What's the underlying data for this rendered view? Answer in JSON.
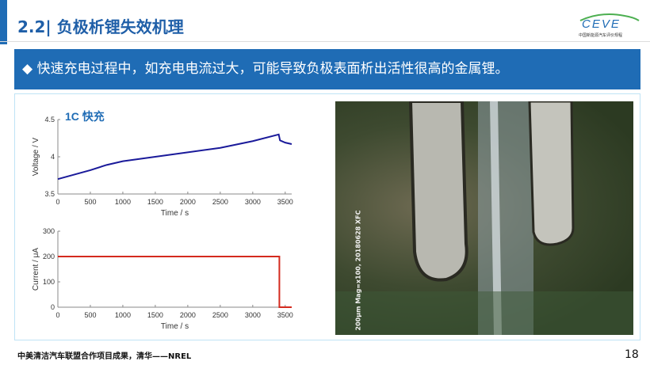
{
  "header": {
    "title": "2.2| 负极析锂失效机理",
    "logo_text": "CEVE",
    "logo_subtitle": "中国新能源汽车评价规程"
  },
  "banner": {
    "bullet": "◆",
    "text": "快速充电过程中，如充电电流过大，可能导致负极表面析出活性很高的金属锂。"
  },
  "figure": {
    "label": "1C 快充",
    "photo_caption": "200μm Mag=x100, 20180628 XFC"
  },
  "chart_data": [
    {
      "type": "line",
      "xlabel": "Time / s",
      "ylabel": "Voltage / V",
      "xlim": [
        0,
        3600
      ],
      "ylim": [
        3.5,
        4.5
      ],
      "xticks": [
        0,
        500,
        1000,
        1500,
        2000,
        2500,
        3000,
        3500
      ],
      "yticks": [
        3.5,
        4,
        4.5
      ],
      "color": "#1a1a9a",
      "x": [
        0,
        250,
        500,
        750,
        1000,
        1500,
        2000,
        2500,
        3000,
        3400,
        3420,
        3500,
        3600
      ],
      "y": [
        3.7,
        3.76,
        3.82,
        3.89,
        3.94,
        4.0,
        4.06,
        4.12,
        4.21,
        4.3,
        4.22,
        4.19,
        4.17
      ]
    },
    {
      "type": "line",
      "xlabel": "Time / s",
      "ylabel": "Current / μA",
      "xlim": [
        0,
        3600
      ],
      "ylim": [
        0,
        300
      ],
      "xticks": [
        0,
        500,
        1000,
        1500,
        2000,
        2500,
        3000,
        3500
      ],
      "yticks": [
        0,
        100,
        200,
        300
      ],
      "color": "#d42a1e",
      "x": [
        0,
        3410,
        3410,
        3600
      ],
      "y": [
        200,
        200,
        0,
        0
      ]
    }
  ],
  "footer": {
    "text": "中美清洁汽车联盟合作项目成果，清华——NREL",
    "page": "18"
  }
}
